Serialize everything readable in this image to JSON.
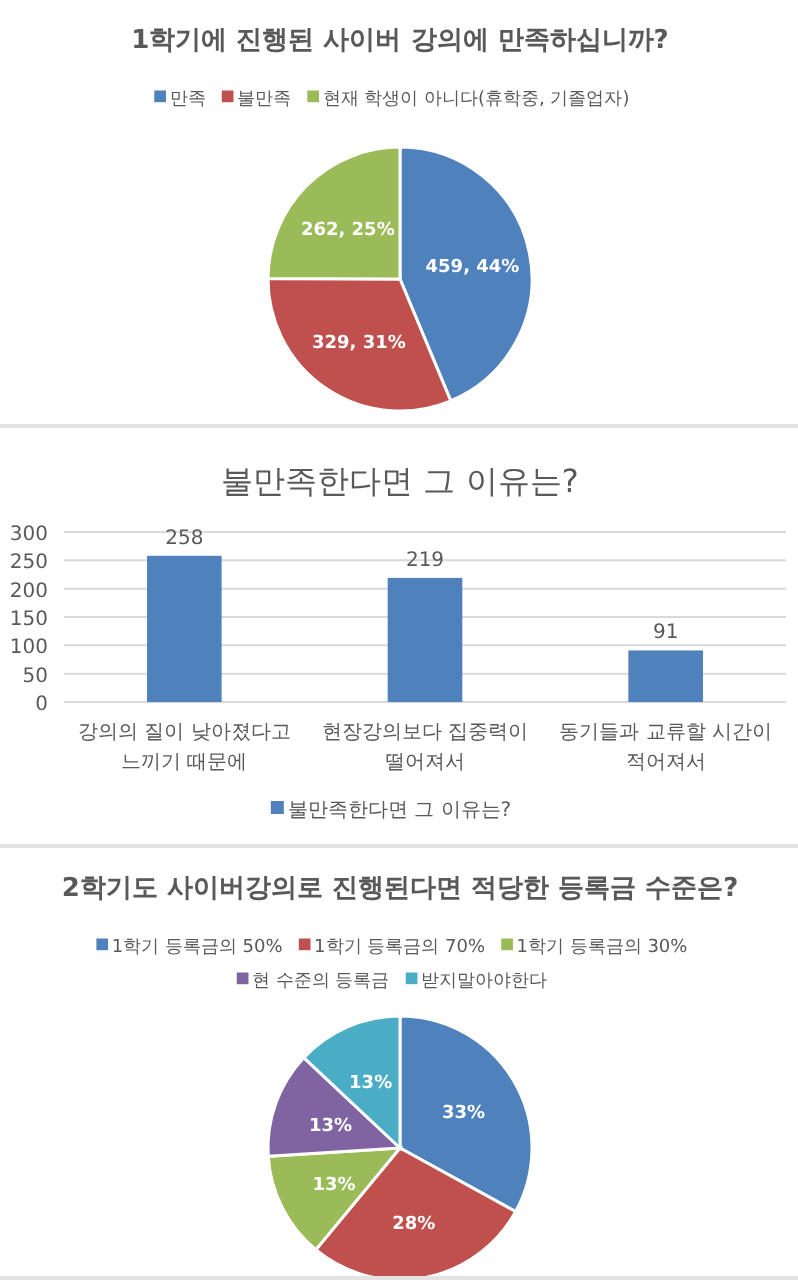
{
  "chart_data": [
    {
      "type": "pie",
      "title": "1학기에 진행된 사이버 강의에 만족하십니까?",
      "categories": [
        "만족",
        "불만족",
        "현재 학생이 아니다(휴학중, 기졸업자)"
      ],
      "values": [
        459,
        329,
        262
      ],
      "colors": [
        "#4f81bd",
        "#c0504d",
        "#9bbb59"
      ],
      "value_labels": [
        "459, 44%",
        "329, 31%",
        "262, 25%"
      ],
      "legend": "top"
    },
    {
      "type": "bar",
      "title": "불만족한다면 그 이유는?",
      "categories": [
        "강의의 질이 낮아졌다고 느끼기 때문에",
        "현장강의보다 집중력이 떨어져서",
        "동기들과 교류할 시간이 적어져서"
      ],
      "series": [
        {
          "name": "불만족한다면 그 이유는?",
          "color": "#4f81bd",
          "values": [
            258,
            219,
            91
          ]
        }
      ],
      "ylim": [
        0,
        300
      ],
      "yticks": [
        0,
        50,
        100,
        150,
        200,
        250,
        300
      ],
      "grid": "y",
      "data_labels": true,
      "legend": "bottom"
    },
    {
      "type": "pie",
      "title": "2학기도 사이버강의로 진행된다면 적당한 등록금 수준은?",
      "categories": [
        "1학기 등록금의 50%",
        "1학기 등록금의 70%",
        "1학기 등록금의 30%",
        "현 수준의 등록금",
        "받지말아야한다"
      ],
      "values": [
        33,
        28,
        13,
        13,
        13
      ],
      "colors": [
        "#4f81bd",
        "#c0504d",
        "#9bbb59",
        "#8064a2",
        "#4bacc6"
      ],
      "value_labels": [
        "33%",
        "28%",
        "13%",
        "13%",
        "13%"
      ],
      "legend": "top"
    }
  ]
}
